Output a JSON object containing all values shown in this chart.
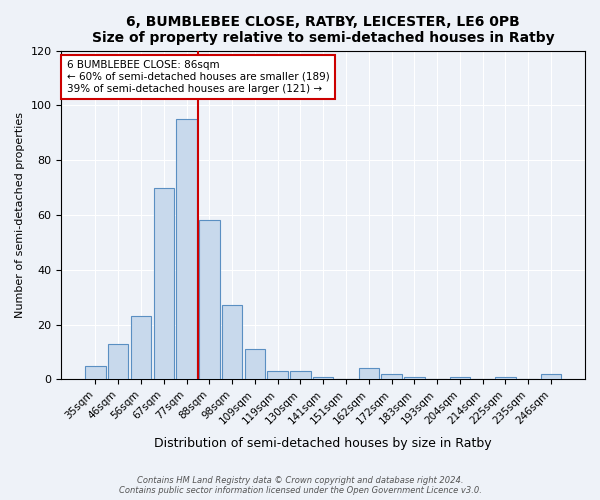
{
  "title": "6, BUMBLEBEE CLOSE, RATBY, LEICESTER, LE6 0PB",
  "subtitle": "Size of property relative to semi-detached houses in Ratby",
  "xlabel": "Distribution of semi-detached houses by size in Ratby",
  "ylabel": "Number of semi-detached properties",
  "bin_labels": [
    "35sqm",
    "46sqm",
    "56sqm",
    "67sqm",
    "77sqm",
    "88sqm",
    "98sqm",
    "109sqm",
    "119sqm",
    "130sqm",
    "141sqm",
    "151sqm",
    "162sqm",
    "172sqm",
    "183sqm",
    "193sqm",
    "204sqm",
    "214sqm",
    "225sqm",
    "235sqm",
    "246sqm"
  ],
  "bar_heights": [
    5,
    13,
    23,
    70,
    95,
    58,
    27,
    11,
    3,
    3,
    1,
    0,
    4,
    2,
    1,
    0,
    1,
    0,
    1,
    0,
    2
  ],
  "bar_color": "#c8d9ec",
  "bar_edge_color": "#5a8fc2",
  "vline_x_index": 5,
  "vline_color": "#cc0000",
  "annotation_title": "6 BUMBLEBEE CLOSE: 86sqm",
  "annotation_line1": "← 60% of semi-detached houses are smaller (189)",
  "annotation_line2": "39% of semi-detached houses are larger (121) →",
  "annotation_box_color": "#ffffff",
  "annotation_box_edge": "#cc0000",
  "ylim": [
    0,
    120
  ],
  "yticks": [
    0,
    20,
    40,
    60,
    80,
    100,
    120
  ],
  "footer1": "Contains HM Land Registry data © Crown copyright and database right 2024.",
  "footer2": "Contains public sector information licensed under the Open Government Licence v3.0.",
  "bg_color": "#eef2f8",
  "plot_bg_color": "#eef2f8"
}
